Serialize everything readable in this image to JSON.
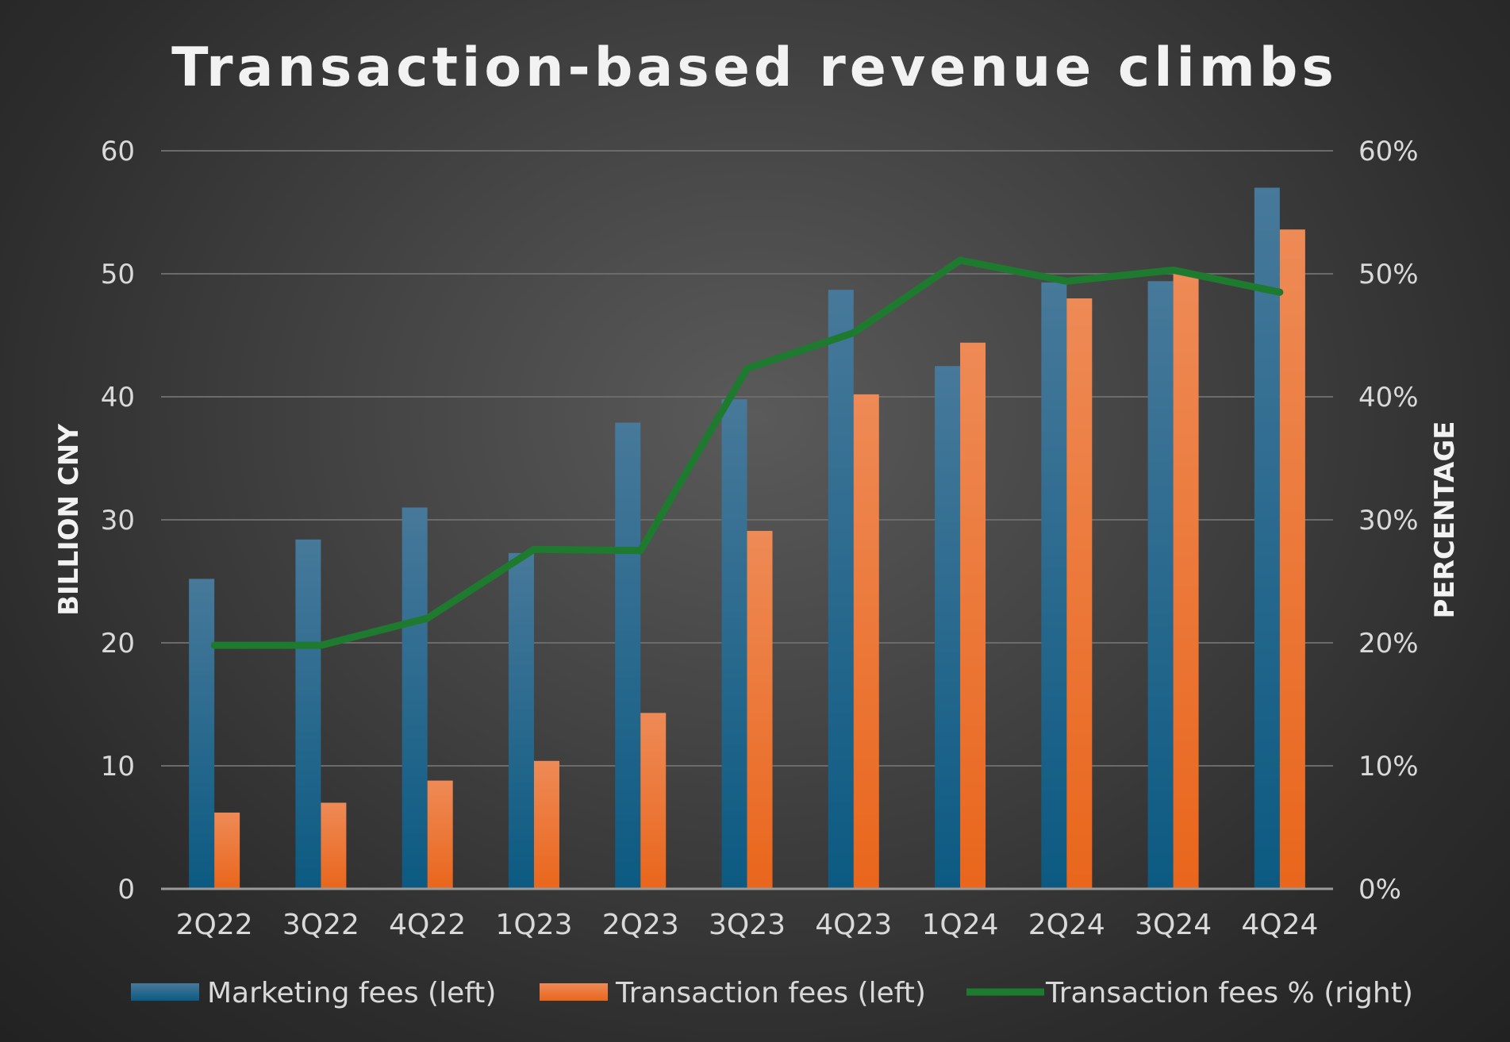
{
  "chart_data": {
    "type": "bar",
    "title": "Transaction-based revenue climbs",
    "categories": [
      "2Q22",
      "3Q22",
      "4Q22",
      "1Q23",
      "2Q23",
      "3Q23",
      "4Q23",
      "1Q24",
      "2Q24",
      "3Q24",
      "4Q24"
    ],
    "series": [
      {
        "name": "Marketing fees (left)",
        "type": "bar",
        "axis": "left",
        "color": "#1f6e96",
        "values": [
          25.2,
          28.4,
          31.0,
          27.3,
          37.9,
          39.8,
          48.7,
          42.5,
          49.3,
          49.4,
          57.0
        ]
      },
      {
        "name": "Transaction fees (left)",
        "type": "bar",
        "axis": "left",
        "color": "#f07a35",
        "values": [
          6.2,
          7.0,
          8.8,
          10.4,
          14.3,
          29.1,
          40.2,
          44.4,
          48.0,
          50.0,
          53.6
        ]
      },
      {
        "name": "Transaction fees % (right)",
        "type": "line",
        "axis": "right",
        "color": "#1e7a2e",
        "values": [
          19.8,
          19.8,
          22.0,
          27.6,
          27.5,
          42.3,
          45.2,
          51.1,
          49.4,
          50.3,
          48.5
        ]
      }
    ],
    "ylabel": "BILLION CNY",
    "y2label": "PERCENTAGE",
    "ylim": [
      0,
      60
    ],
    "y2lim": [
      0,
      60
    ],
    "yticks": [
      "0",
      "10",
      "20",
      "30",
      "40",
      "50",
      "60"
    ],
    "y2ticks": [
      "0%",
      "10%",
      "20%",
      "30%",
      "40%",
      "50%",
      "60%"
    ],
    "grid": true,
    "legend_position": "bottom"
  }
}
